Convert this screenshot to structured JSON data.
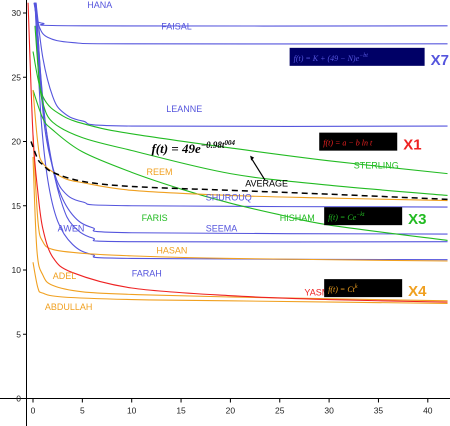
{
  "chart_data": {
    "type": "line",
    "xlim": [
      -2,
      42
    ],
    "ylim": [
      0,
      31
    ],
    "x_ticks": [
      0,
      5,
      10,
      15,
      20,
      25,
      30,
      35,
      40
    ],
    "y_ticks": [
      0,
      5,
      10,
      15,
      20,
      25,
      30
    ],
    "grid": false,
    "colors": {
      "blue": "#5555dd",
      "green": "#22bb22",
      "orange": "#f0a020",
      "red": "#ee2222",
      "average": "#000000"
    },
    "series": [
      {
        "name": "HANA",
        "color": "blue",
        "points": [
          [
            0.15,
            30.8
          ],
          [
            0.4,
            29.6
          ],
          [
            1,
            29.2
          ],
          [
            5,
            29.0
          ],
          [
            42,
            29.0
          ]
        ]
      },
      {
        "name": "FAISAL",
        "color": "blue",
        "points": [
          [
            0.1,
            30.8
          ],
          [
            0.6,
            29.0
          ],
          [
            1.5,
            28.1
          ],
          [
            4,
            27.7
          ],
          [
            10,
            27.6
          ],
          [
            42,
            27.6
          ]
        ]
      },
      {
        "name": "LEANNE",
        "color": "blue",
        "points": [
          [
            0.3,
            30.8
          ],
          [
            1,
            26.5
          ],
          [
            2,
            23.5
          ],
          [
            3,
            22.3
          ],
          [
            5,
            21.6
          ],
          [
            10,
            21.2
          ],
          [
            42,
            21.2
          ]
        ]
      },
      {
        "name": "SHUROUQ",
        "color": "blue",
        "points": [
          [
            0.2,
            30.8
          ],
          [
            0.6,
            26
          ],
          [
            1.2,
            21
          ],
          [
            2,
            18
          ],
          [
            3,
            16.2
          ],
          [
            5,
            15.3
          ],
          [
            10,
            15.0
          ],
          [
            42,
            14.9
          ]
        ]
      },
      {
        "name": "AWEN",
        "color": "blue",
        "points": [
          [
            0.3,
            30.8
          ],
          [
            0.8,
            25
          ],
          [
            1.5,
            20
          ],
          [
            2.5,
            16.5
          ],
          [
            4,
            14.3
          ],
          [
            6,
            13.3
          ],
          [
            10,
            12.9
          ],
          [
            42,
            12.8
          ]
        ]
      },
      {
        "name": "SEEMA",
        "color": "blue",
        "points": [
          [
            0.3,
            30.8
          ],
          [
            1,
            23
          ],
          [
            2,
            18
          ],
          [
            3,
            15
          ],
          [
            4,
            13.5
          ],
          [
            6,
            12.5
          ],
          [
            10,
            12.2
          ],
          [
            42,
            12.2
          ]
        ]
      },
      {
        "name": "FARAH",
        "color": "blue",
        "points": [
          [
            0.2,
            30.8
          ],
          [
            0.8,
            22
          ],
          [
            1.5,
            17
          ],
          [
            2.5,
            13.8
          ],
          [
            4,
            12
          ],
          [
            6,
            11.2
          ],
          [
            10,
            10.9
          ],
          [
            42,
            10.8
          ]
        ]
      },
      {
        "name": "STERLING",
        "color": "green",
        "points": [
          [
            0,
            27
          ],
          [
            1,
            23.5
          ],
          [
            3,
            22
          ],
          [
            6,
            21.2
          ],
          [
            10,
            20.6
          ],
          [
            20,
            19.5
          ],
          [
            30,
            18.5
          ],
          [
            42,
            17.5
          ]
        ]
      },
      {
        "name": "FARIS",
        "color": "green",
        "points": [
          [
            0.2,
            29
          ],
          [
            0.6,
            25
          ],
          [
            1,
            23
          ],
          [
            2,
            21.5
          ],
          [
            5,
            20.3
          ],
          [
            10,
            19.3
          ],
          [
            20,
            17.5
          ],
          [
            30,
            16.6
          ],
          [
            42,
            15.8
          ]
        ]
      },
      {
        "name": "HISHAM",
        "color": "green",
        "points": [
          [
            0,
            24
          ],
          [
            1,
            21.8
          ],
          [
            2,
            20.9
          ],
          [
            5,
            19.2
          ],
          [
            10,
            17.6
          ],
          [
            15,
            16.3
          ],
          [
            20,
            15.2
          ],
          [
            25,
            14.3
          ],
          [
            30,
            13.5
          ],
          [
            42,
            12.3
          ]
        ]
      },
      {
        "name": "REEM",
        "color": "orange",
        "points": [
          [
            0,
            24
          ],
          [
            0.5,
            19.8
          ],
          [
            1,
            18.3
          ],
          [
            3,
            17.2
          ],
          [
            5,
            16.8
          ],
          [
            10,
            16.2
          ],
          [
            20,
            15.8
          ],
          [
            30,
            15.6
          ],
          [
            42,
            15.4
          ]
        ]
      },
      {
        "name": "HASAN",
        "color": "orange",
        "points": [
          [
            0,
            20.5
          ],
          [
            0.5,
            13.8
          ],
          [
            1,
            12.2
          ],
          [
            2,
            11.6
          ],
          [
            5,
            11.3
          ],
          [
            10,
            11.1
          ],
          [
            20,
            10.9
          ],
          [
            42,
            10.7
          ]
        ]
      },
      {
        "name": "ADEL",
        "color": "orange",
        "points": [
          [
            0,
            18.8
          ],
          [
            0.4,
            11.5
          ],
          [
            1,
            9.6
          ],
          [
            2,
            8.8
          ],
          [
            5,
            8.3
          ],
          [
            10,
            8.1
          ],
          [
            20,
            7.9
          ],
          [
            42,
            7.6
          ]
        ]
      },
      {
        "name": "ABDULLAH",
        "color": "orange",
        "points": [
          [
            0,
            10.6
          ],
          [
            0.5,
            8.6
          ],
          [
            1,
            8.2
          ],
          [
            3,
            7.9
          ],
          [
            10,
            7.7
          ],
          [
            20,
            7.6
          ],
          [
            42,
            7.4
          ]
        ]
      },
      {
        "name": "YASMIN",
        "color": "red",
        "points": [
          [
            -0.5,
            30.8
          ],
          [
            0,
            20.5
          ],
          [
            0.5,
            16
          ],
          [
            1,
            13.2
          ],
          [
            2,
            11
          ],
          [
            4,
            9.8
          ],
          [
            10,
            8.6
          ],
          [
            20,
            8.0
          ],
          [
            30,
            7.7
          ],
          [
            42,
            7.5
          ]
        ]
      },
      {
        "name": "AVERAGE",
        "color": "average",
        "dashed": true,
        "points": [
          [
            -0.2,
            20
          ],
          [
            0.5,
            18.6
          ],
          [
            1,
            18.2
          ],
          [
            2,
            17.6
          ],
          [
            5,
            16.9
          ],
          [
            10,
            16.5
          ],
          [
            20,
            16.2
          ],
          [
            30,
            15.9
          ],
          [
            42,
            15.5
          ]
        ]
      }
    ],
    "series_labels": [
      {
        "text": "HANA",
        "x": 5.5,
        "y": 30.4,
        "color": "blue"
      },
      {
        "text": "FAISAL",
        "x": 13,
        "y": 28.7,
        "color": "blue"
      },
      {
        "text": "LEANNE",
        "x": 13.5,
        "y": 22.3,
        "color": "blue"
      },
      {
        "text": "SHUROUQ",
        "x": 17.5,
        "y": 15.4,
        "color": "blue"
      },
      {
        "text": "AWEN",
        "x": 2.5,
        "y": 13.0,
        "color": "blue"
      },
      {
        "text": "SEEMA",
        "x": 17.5,
        "y": 13.0,
        "color": "blue"
      },
      {
        "text": "FARAH",
        "x": 10,
        "y": 9.5,
        "color": "blue"
      },
      {
        "text": "STERLING",
        "x": 32.5,
        "y": 17.9,
        "color": "green"
      },
      {
        "text": "FARIS",
        "x": 11,
        "y": 13.8,
        "color": "green"
      },
      {
        "text": "HISHAM",
        "x": 25,
        "y": 13.8,
        "color": "green"
      },
      {
        "text": "REEM",
        "x": 11.5,
        "y": 17.4,
        "color": "orange"
      },
      {
        "text": "HASAN",
        "x": 12.5,
        "y": 11.3,
        "color": "orange"
      },
      {
        "text": "ADEL",
        "x": 2,
        "y": 9.3,
        "color": "orange"
      },
      {
        "text": "ABDULLAH",
        "x": 1.2,
        "y": 6.9,
        "color": "orange"
      },
      {
        "text": "YASMIN",
        "x": 27.5,
        "y": 8.0,
        "color": "red"
      },
      {
        "text": "AVERAGE",
        "x": 21.5,
        "y": 16.5,
        "color": "average"
      }
    ],
    "annotations": {
      "main_formula": "f(t) = 49e",
      "main_formula_exponent": "−0.98t",
      "main_formula_exponent_power": "004",
      "groups": [
        {
          "formula": "f(t) = K + (49 − N)e",
          "formula_exp": "−bt",
          "badge": "X7",
          "color": "blue",
          "box_bg": "#000066",
          "x": 26,
          "y": 26.2
        },
        {
          "formula": "f(t) = a − b ln t",
          "formula_exp": "",
          "badge": "X1",
          "color": "red",
          "box_bg": "#000000",
          "x": 29,
          "y": 19.6
        },
        {
          "formula": "f(t) = Ce",
          "formula_exp": "−kt",
          "badge": "X3",
          "color": "green",
          "box_bg": "#000000",
          "x": 29.5,
          "y": 13.8
        },
        {
          "formula": "f(t) = Ct",
          "formula_exp": "k",
          "badge": "X4",
          "color": "orange",
          "box_bg": "#000000",
          "x": 29.5,
          "y": 8.2
        }
      ]
    }
  }
}
